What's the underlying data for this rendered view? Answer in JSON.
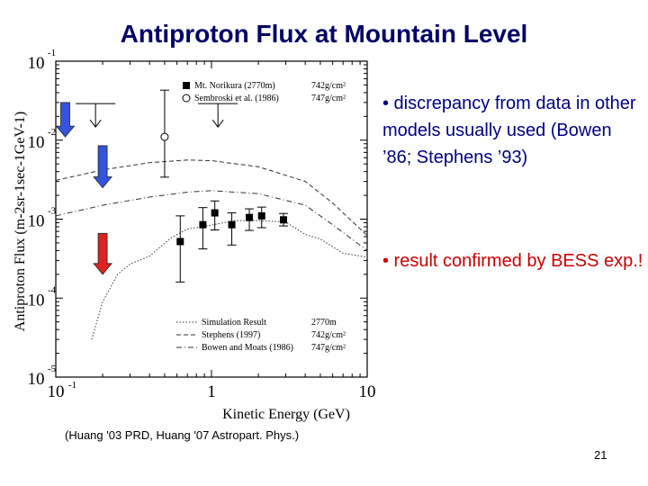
{
  "slide": {
    "title": "Antiproton Flux at Mountain Level",
    "bullets": [
      "• discrepancy from data in other models usually used (Bowen ’86; Stephens ’93)",
      "• result confirmed by BESS exp.!"
    ],
    "reference": "(Huang '03 PRD, Huang '07 Astropart. Phys.)",
    "page_number": "21"
  },
  "chart_data": {
    "type": "scatter",
    "xlabel": "Kinetic Energy (GeV)",
    "ylabel": "Antiproton Flux (m-2sr-1sec-1GeV-1)",
    "x_scale": "log",
    "y_scale": "log",
    "xlim": [
      0.1,
      10
    ],
    "ylim": [
      1e-05,
      0.1
    ],
    "x_ticks": [
      {
        "value": 0.1,
        "base": "10",
        "exp": "-1"
      },
      {
        "value": 1,
        "base": "1",
        "exp": ""
      },
      {
        "value": 10,
        "base": "10",
        "exp": ""
      }
    ],
    "y_ticks": [
      {
        "value": 0.1,
        "base": "10",
        "exp": "-1"
      },
      {
        "value": 0.01,
        "base": "10",
        "exp": "-2"
      },
      {
        "value": 0.001,
        "base": "10",
        "exp": "-3"
      },
      {
        "value": 0.0001,
        "base": "10",
        "exp": "-4"
      },
      {
        "value": 1e-05,
        "base": "10",
        "exp": "-5"
      }
    ],
    "data_legend": [
      {
        "label": "Mt. Norikura (2770m)",
        "depth": "742g/cm²",
        "marker": "square-filled"
      },
      {
        "label": "Sembroski et al. (1986)",
        "depth": "747g/cm²",
        "marker": "circle-open"
      }
    ],
    "series": [
      {
        "name": "Mt. Norikura (2770m)",
        "marker": "square-filled",
        "points": [
          {
            "x": 0.63,
            "y": 0.00052,
            "ylo": 0.00016,
            "yhi": 0.0011
          },
          {
            "x": 0.88,
            "y": 0.00085,
            "ylo": 0.00042,
            "yhi": 0.0014
          },
          {
            "x": 1.05,
            "y": 0.0012,
            "ylo": 0.00073,
            "yhi": 0.0017
          },
          {
            "x": 1.35,
            "y": 0.00085,
            "ylo": 0.00047,
            "yhi": 0.0012
          },
          {
            "x": 1.75,
            "y": 0.00105,
            "ylo": 0.00072,
            "yhi": 0.00135
          },
          {
            "x": 2.1,
            "y": 0.0011,
            "ylo": 0.00078,
            "yhi": 0.00142
          },
          {
            "x": 2.9,
            "y": 0.00098,
            "ylo": 0.00082,
            "yhi": 0.00118
          }
        ]
      },
      {
        "name": "Sembroski et al. (1986)",
        "marker": "circle-open",
        "points": [
          {
            "x": 0.5,
            "y": 0.011,
            "ylo": 0.0034,
            "yhi": 0.043
          }
        ],
        "upper_limits": [
          {
            "x": 0.18,
            "y": 0.029
          },
          {
            "x": 1.1,
            "y": 0.029
          }
        ]
      }
    ],
    "curves_legend": [
      {
        "label": "Simulation Result",
        "depth": "2770m",
        "style": "dotted"
      },
      {
        "label": "Stephens (1997)",
        "depth": "742g/cm²",
        "style": "dashed"
      },
      {
        "label": "Bowen and Moats (1986)",
        "depth": "747g/cm²",
        "style": "dash-dot"
      }
    ],
    "curves": [
      {
        "name": "Stephens (1997)",
        "style": "dashed",
        "points": [
          [
            0.1,
            0.0031
          ],
          [
            0.2,
            0.0042
          ],
          [
            0.4,
            0.0052
          ],
          [
            0.7,
            0.0056
          ],
          [
            1,
            0.0055
          ],
          [
            2,
            0.0046
          ],
          [
            4,
            0.003
          ],
          [
            6,
            0.0016
          ],
          [
            10,
            0.00062
          ]
        ]
      },
      {
        "name": "Bowen and Moats (1986)",
        "style": "dash-dot",
        "points": [
          [
            0.1,
            0.0011
          ],
          [
            0.2,
            0.0015
          ],
          [
            0.4,
            0.0019
          ],
          [
            0.7,
            0.0022
          ],
          [
            1,
            0.0023
          ],
          [
            2,
            0.0021
          ],
          [
            4,
            0.0015
          ],
          [
            6,
            0.00085
          ],
          [
            10,
            0.0004
          ]
        ]
      },
      {
        "name": "Simulation Result",
        "style": "dotted",
        "points": [
          [
            0.17,
            3e-05
          ],
          [
            0.2,
            9e-05
          ],
          [
            0.25,
            0.0002
          ],
          [
            0.3,
            0.00027
          ],
          [
            0.4,
            0.00034
          ],
          [
            0.55,
            0.00058
          ],
          [
            0.7,
            0.00075
          ],
          [
            1,
            0.00084
          ],
          [
            1.4,
            0.00096
          ],
          [
            2,
            0.00096
          ],
          [
            3,
            0.00092
          ],
          [
            4,
            0.00064
          ],
          [
            5,
            0.00056
          ],
          [
            7,
            0.00037
          ],
          [
            10,
            0.00033
          ]
        ]
      }
    ],
    "arrows": [
      {
        "x": 0.115,
        "from": 0.03,
        "to": 0.011,
        "color": "#3355dd"
      },
      {
        "x": 0.2,
        "from": 0.0085,
        "to": 0.0025,
        "color": "#3355dd"
      },
      {
        "x": 0.2,
        "from": 0.00066,
        "to": 0.0002,
        "color": "#dd2222"
      }
    ]
  }
}
